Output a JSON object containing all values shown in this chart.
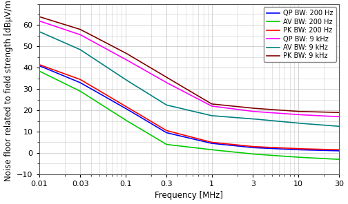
{
  "title": "",
  "xlabel": "Frequency [MHz]",
  "ylabel": "Noise floor related to field strength [dBµV/m]",
  "xlim": [
    0.01,
    30
  ],
  "ylim": [
    -10,
    70
  ],
  "yticks": [
    -10,
    0,
    10,
    20,
    30,
    40,
    50,
    60
  ],
  "xticks": [
    0.01,
    0.03,
    0.1,
    0.3,
    1,
    3,
    10,
    30
  ],
  "xticklabels": [
    "0.01",
    "0.03",
    "0.1",
    "0.3",
    "1",
    "3",
    "10",
    "30"
  ],
  "series": [
    {
      "label": "QP BW: 200 Hz",
      "color": "#0000FF",
      "linewidth": 1.2,
      "freq": [
        0.01,
        0.03,
        0.1,
        0.3,
        1.0,
        3.0,
        10.0,
        30.0
      ],
      "values": [
        41.0,
        33.0,
        21.0,
        9.5,
        4.5,
        2.5,
        1.5,
        1.0
      ]
    },
    {
      "label": "AV BW: 200 Hz",
      "color": "#00CC00",
      "linewidth": 1.2,
      "freq": [
        0.01,
        0.03,
        0.1,
        0.3,
        1.0,
        3.0,
        10.0,
        30.0
      ],
      "values": [
        38.5,
        29.0,
        15.5,
        4.0,
        1.5,
        -0.5,
        -2.0,
        -3.0
      ]
    },
    {
      "label": "PK BW: 200 Hz",
      "color": "#FF0000",
      "linewidth": 1.2,
      "freq": [
        0.01,
        0.03,
        0.1,
        0.3,
        1.0,
        3.0,
        10.0,
        30.0
      ],
      "values": [
        41.5,
        34.5,
        22.0,
        10.5,
        5.0,
        3.0,
        2.0,
        1.5
      ]
    },
    {
      "label": "QP BW: 9 kHz",
      "color": "#FF00FF",
      "linewidth": 1.2,
      "freq": [
        0.01,
        0.03,
        0.1,
        0.3,
        1.0,
        3.0,
        10.0,
        30.0
      ],
      "values": [
        62.0,
        55.5,
        44.0,
        33.0,
        22.0,
        19.5,
        18.0,
        17.0
      ]
    },
    {
      "label": "AV BW: 9 kHz",
      "color": "#008080",
      "linewidth": 1.2,
      "freq": [
        0.01,
        0.03,
        0.1,
        0.3,
        1.0,
        3.0,
        10.0,
        30.0
      ],
      "values": [
        57.0,
        48.5,
        34.5,
        22.5,
        17.5,
        16.0,
        14.0,
        12.5
      ]
    },
    {
      "label": "PK BW: 9 kHz",
      "color": "#800000",
      "linewidth": 1.2,
      "freq": [
        0.01,
        0.03,
        0.1,
        0.3,
        1.0,
        3.0,
        10.0,
        30.0
      ],
      "values": [
        64.0,
        58.0,
        47.0,
        35.5,
        23.0,
        21.0,
        19.5,
        19.0
      ]
    }
  ],
  "grid_color": "#cccccc",
  "bg_color": "#ffffff",
  "legend_fontsize": 7.0,
  "axis_label_fontsize": 8.5,
  "tick_fontsize": 8.0
}
